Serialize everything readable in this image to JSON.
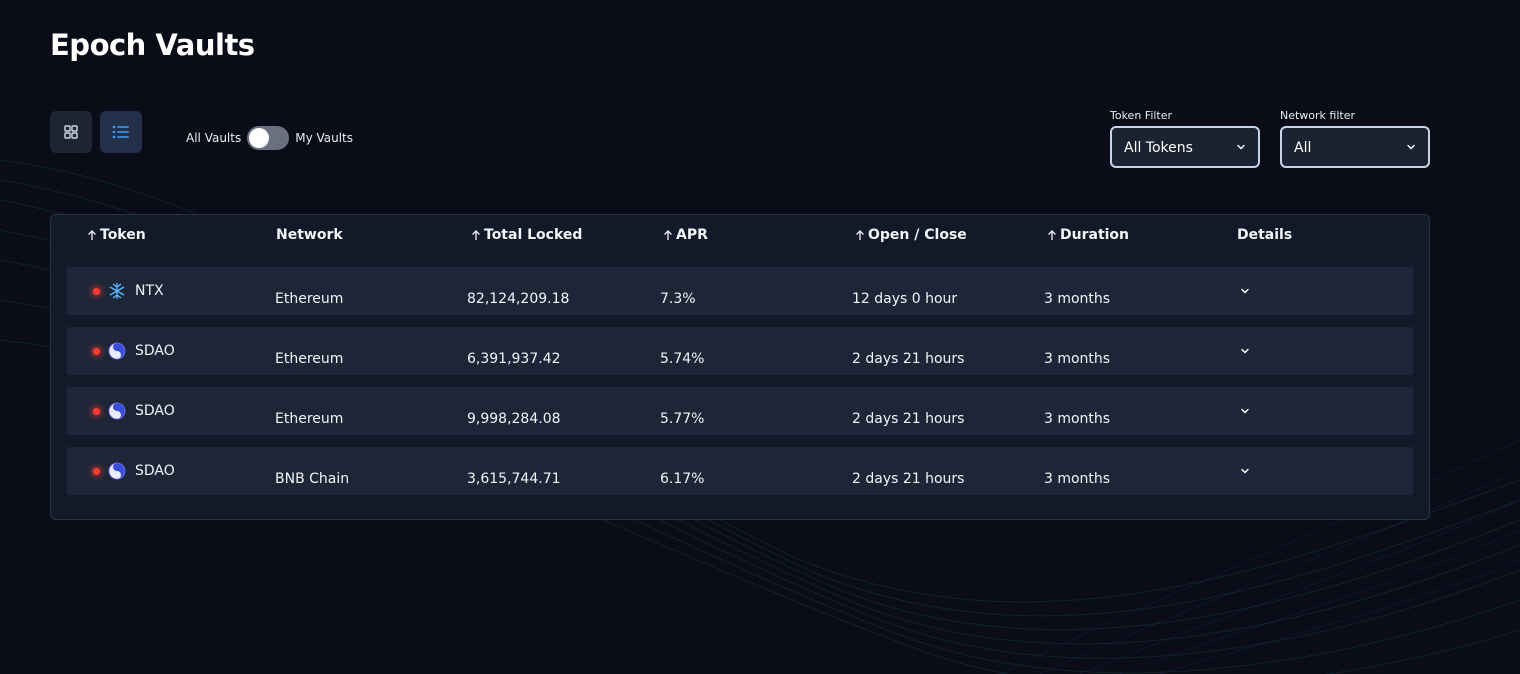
{
  "page": {
    "title": "Epoch Vaults"
  },
  "toolbar": {
    "grid_view": {
      "icon": "grid-icon"
    },
    "list_view": {
      "icon": "list-icon",
      "active": true
    },
    "toggle": {
      "left_label": "All Vaults",
      "right_label": "My Vaults",
      "on": false
    }
  },
  "filters": {
    "token": {
      "label": "Token Filter",
      "value": "All Tokens"
    },
    "network": {
      "label": "Network filter",
      "value": "All"
    }
  },
  "table": {
    "headers": {
      "token": "Token",
      "network": "Network",
      "total_locked": "Total Locked",
      "apr": "APR",
      "open_close": "Open / Close",
      "duration": "Duration",
      "details": "Details"
    },
    "rows": [
      {
        "token": "NTX",
        "token_icon": "ntx-token-icon",
        "network": "Ethereum",
        "total_locked": "82,124,209.18",
        "apr": "7.3%",
        "open_close": "12 days 0 hour",
        "duration": "3 months"
      },
      {
        "token": "SDAO",
        "token_icon": "sdao-token-icon",
        "network": "Ethereum",
        "total_locked": "6,391,937.42",
        "apr": "5.74%",
        "open_close": "2 days 21 hours",
        "duration": "3 months"
      },
      {
        "token": "SDAO",
        "token_icon": "sdao-token-icon",
        "network": "Ethereum",
        "total_locked": "9,998,284.08",
        "apr": "5.77%",
        "open_close": "2 days 21 hours",
        "duration": "3 months"
      },
      {
        "token": "SDAO",
        "token_icon": "sdao-token-icon",
        "network": "BNB Chain",
        "total_locked": "3,615,744.71",
        "apr": "6.17%",
        "open_close": "2 days 21 hours",
        "duration": "3 months"
      }
    ]
  },
  "colors": {
    "background": "#0a0d17",
    "card": "#121928",
    "row": "#1d2637",
    "status_dot": "#ff3b30",
    "accent": "#3aa0ff"
  }
}
